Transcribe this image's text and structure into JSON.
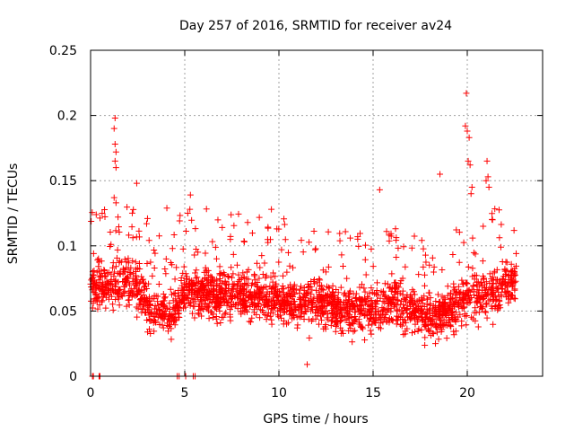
{
  "chart_data": {
    "type": "scatter",
    "title": "Day 257 of 2016, SRMTID for receiver av24",
    "xlabel": "GPS time / hours",
    "ylabel": "SRMTID / TECUs",
    "xlim": [
      0,
      24
    ],
    "ylim": [
      0,
      0.25
    ],
    "x_ticks": [
      0,
      5,
      10,
      15,
      20
    ],
    "x_tick_labels": [
      "0",
      "5",
      "10",
      "15",
      "20"
    ],
    "y_ticks": [
      0,
      0.05,
      0.1,
      0.15,
      0.2,
      0.25
    ],
    "y_tick_labels": [
      "0",
      "0.05",
      "0.1",
      "0.15",
      "0.2",
      "0.25"
    ],
    "grid": true,
    "marker": "+",
    "color": "#ff0000",
    "series": [
      {
        "name": "SRMTID",
        "x_range": [
          0,
          22.6
        ],
        "baseline_trend": [
          [
            0,
            0.072
          ],
          [
            1,
            0.07
          ],
          [
            2,
            0.075
          ],
          [
            2.5,
            0.068
          ],
          [
            3.3,
            0.05
          ],
          [
            4.3,
            0.048
          ],
          [
            5,
            0.065
          ],
          [
            6,
            0.064
          ],
          [
            8,
            0.062
          ],
          [
            10,
            0.058
          ],
          [
            12,
            0.055
          ],
          [
            14,
            0.05
          ],
          [
            15,
            0.048
          ],
          [
            16,
            0.058
          ],
          [
            17,
            0.05
          ],
          [
            18,
            0.045
          ],
          [
            19,
            0.048
          ],
          [
            20,
            0.062
          ],
          [
            21,
            0.06
          ],
          [
            22,
            0.07
          ],
          [
            22.6,
            0.075
          ]
        ],
        "highlighted_points": [
          [
            19.95,
            0.217
          ],
          [
            19.9,
            0.192
          ],
          [
            20.0,
            0.188
          ],
          [
            20.1,
            0.183
          ],
          [
            20.05,
            0.165
          ],
          [
            20.15,
            0.162
          ],
          [
            20.25,
            0.145
          ],
          [
            20.2,
            0.14
          ],
          [
            1.3,
            0.198
          ],
          [
            1.25,
            0.19
          ],
          [
            1.3,
            0.178
          ],
          [
            1.35,
            0.172
          ],
          [
            1.3,
            0.165
          ],
          [
            1.35,
            0.16
          ],
          [
            1.25,
            0.137
          ],
          [
            1.35,
            0.133
          ],
          [
            2.45,
            0.148
          ],
          [
            18.55,
            0.155
          ],
          [
            15.35,
            0.143
          ],
          [
            5.3,
            0.139
          ],
          [
            21.05,
            0.165
          ],
          [
            21.1,
            0.153
          ],
          [
            21.0,
            0.15
          ],
          [
            21.15,
            0.145
          ],
          [
            11.5,
            0.009
          ],
          [
            9.6,
            0.128
          ],
          [
            0.3,
            0.124
          ],
          [
            4.05,
            0.129
          ]
        ],
        "zero_points_x": [
          0.1,
          0.15,
          0.45,
          0.5,
          4.6,
          4.7,
          5.05,
          5.45,
          5.55
        ]
      }
    ]
  }
}
